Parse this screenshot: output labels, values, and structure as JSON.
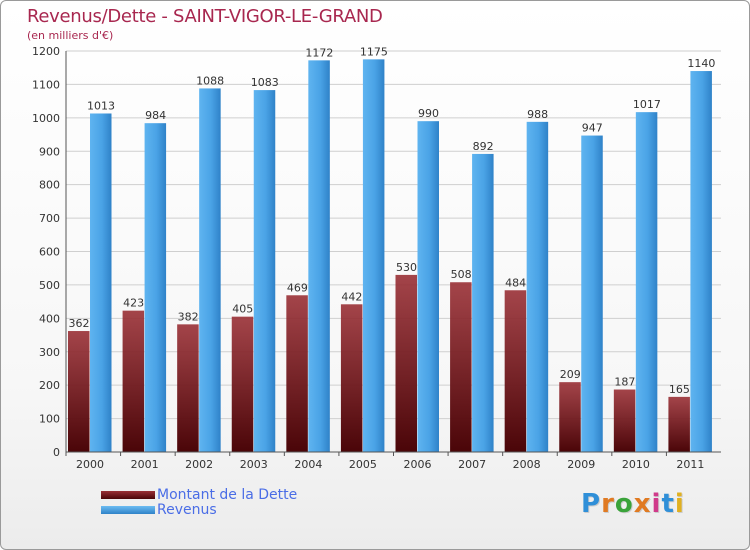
{
  "title": "Revenus/Dette - SAINT-VIGOR-LE-GRAND",
  "subtitle": "(en milliers d'€)",
  "logo_text": "Proxiti",
  "colors": {
    "dette": "#7a1a1f",
    "revenus": "#4aa3e6",
    "title": "#a8274f",
    "legend_text": "#4a6de6"
  },
  "chart_data": {
    "type": "bar",
    "categories": [
      "2000",
      "2001",
      "2002",
      "2003",
      "2004",
      "2005",
      "2006",
      "2007",
      "2008",
      "2009",
      "2010",
      "2011"
    ],
    "series": [
      {
        "name": "Montant de la Dette",
        "values": [
          362,
          423,
          382,
          405,
          469,
          442,
          530,
          508,
          484,
          209,
          187,
          165
        ]
      },
      {
        "name": "Revenus",
        "values": [
          1013,
          984,
          1088,
          1083,
          1172,
          1175,
          990,
          892,
          988,
          947,
          1017,
          1140
        ]
      }
    ],
    "ylim": [
      0,
      1200
    ],
    "yticks": [
      0,
      100,
      200,
      300,
      400,
      500,
      600,
      700,
      800,
      900,
      1000,
      1100,
      1200
    ],
    "grid": true,
    "legend_position": "bottom-left"
  }
}
